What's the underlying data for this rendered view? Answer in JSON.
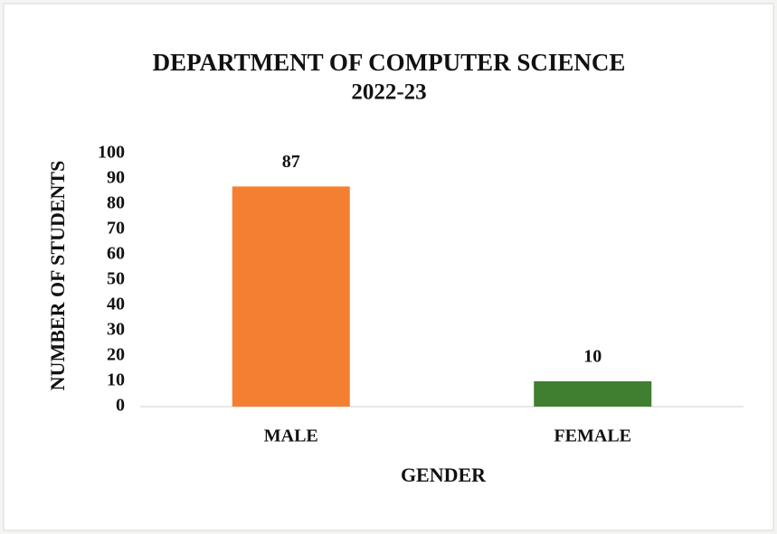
{
  "chart_data": {
    "type": "bar",
    "title": "DEPARTMENT OF COMPUTER SCIENCE",
    "subtitle": "2022-23",
    "x_label": "GENDER",
    "y_label": "NUMBER OF STUDENTS",
    "categories": [
      "MALE",
      "FEMALE"
    ],
    "values": [
      87,
      10
    ],
    "colors": [
      "#f57f31",
      "#3f7f2f"
    ],
    "ylim": [
      0,
      100
    ],
    "yticks": [
      0,
      10,
      20,
      30,
      40,
      50,
      60,
      70,
      80,
      90,
      100
    ],
    "grid": false
  }
}
